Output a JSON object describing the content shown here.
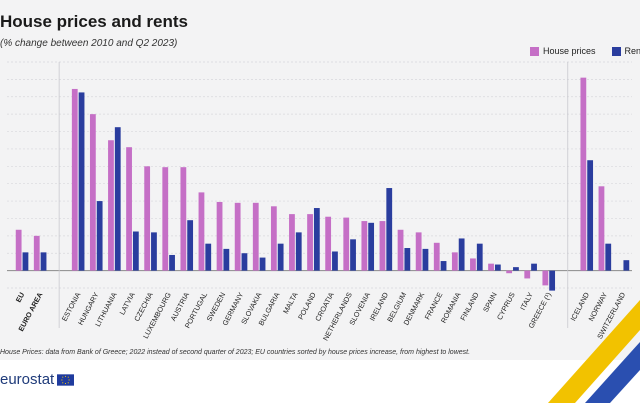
{
  "header": {
    "title": "House prices and rents",
    "subtitle": "(% change between 2010 and Q2 2023)"
  },
  "legend": [
    {
      "label": "House prices",
      "color": "#c56fc6"
    },
    {
      "label": "Rents",
      "color": "#2a3d9e"
    }
  ],
  "footnote": "House Prices: data from Bank of Greece; 2022 instead of second quarter of 2023; EU countries sorted by house prices increase, from highest to lowest.",
  "brand": {
    "name": "eurostat",
    "flag_icon": "eu-flag-icon"
  },
  "chart_data": {
    "type": "bar",
    "categories": [
      "EU",
      "EURO AREA",
      "ESTONIA",
      "HUNGARY",
      "LITHUANIA",
      "LATVIA",
      "CZECHIA",
      "LUXEMBOURG",
      "AUSTRIA",
      "PORTUGAL",
      "SWEDEN",
      "GERMANY",
      "SLOVAKIA",
      "BULGARIA",
      "MALTA",
      "POLAND",
      "CROATIA",
      "NETHERLANDS",
      "SLOVENIA",
      "IRELAND",
      "BELGIUM",
      "DENMARK",
      "FRANCE",
      "ROMANIA",
      "FINLAND",
      "SPAIN",
      "CYPRUS",
      "ITALY",
      "GREECE (¹)",
      "ICELAND",
      "NORWAY",
      "SWITZERLAND"
    ],
    "gap_after": [
      1,
      28
    ],
    "series": [
      {
        "name": "House prices",
        "color": "#c56fc6",
        "values": [
          47,
          40,
          209,
          180,
          150,
          142,
          120,
          119,
          119,
          90,
          79,
          78,
          78,
          74,
          65,
          65,
          62,
          61,
          57,
          57,
          47,
          44,
          32,
          21,
          14,
          8,
          -3,
          -9,
          -17,
          222,
          97,
          null
        ]
      },
      {
        "name": "Rents",
        "color": "#2a3d9e",
        "values": [
          21,
          21,
          205,
          80,
          165,
          45,
          44,
          18,
          58,
          31,
          25,
          20,
          15,
          31,
          44,
          72,
          22,
          36,
          55,
          95,
          26,
          25,
          11,
          37,
          31,
          7,
          4,
          8,
          -23,
          127,
          31,
          12
        ]
      }
    ],
    "ylim": [
      -20,
      240
    ],
    "xlabel": "",
    "ylabel": "",
    "grid": true,
    "legend_position": "top-right"
  }
}
